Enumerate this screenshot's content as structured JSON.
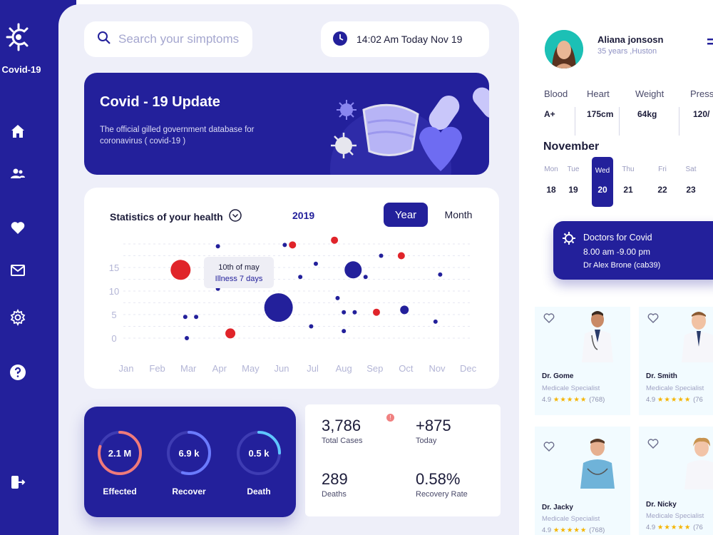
{
  "app": {
    "name": "Covid-19"
  },
  "sidebar": {
    "items": [
      {
        "icon": "home-icon"
      },
      {
        "icon": "users-icon"
      },
      {
        "icon": "heart-icon"
      },
      {
        "icon": "mail-icon"
      },
      {
        "icon": "gear-icon"
      },
      {
        "icon": "help-icon"
      },
      {
        "icon": "logout-icon"
      }
    ]
  },
  "search": {
    "placeholder": "Search your simptoms"
  },
  "clock": {
    "text": "14:02 Am Today Nov 19"
  },
  "banner": {
    "title": "Covid - 19 Update",
    "text": "The official gilled government database for coronavirus ( covid-19 )"
  },
  "stats": {
    "title": "Statistics of your health",
    "year": "2019",
    "toggle_year": "Year",
    "toggle_month": "Month",
    "tooltip_title": "10th of may",
    "tooltip_text": "Illness 7 days"
  },
  "chart_data": {
    "type": "scatter",
    "x_categories": [
      "Jan",
      "Feb",
      "Mar",
      "Apr",
      "May",
      "Jun",
      "Jul",
      "Aug",
      "Sep",
      "Oct",
      "Nov",
      "Dec"
    ],
    "y_ticks": [
      0,
      5,
      10,
      15
    ],
    "ylim": [
      0,
      20
    ],
    "grid": true,
    "series": [
      {
        "color": "#23209b",
        "points": [
          {
            "x": 2.25,
            "y": 4.5,
            "size": 3
          },
          {
            "x": 1.9,
            "y": 4.5,
            "size": 3
          },
          {
            "x": 1.95,
            "y": 0,
            "size": 3
          },
          {
            "x": 2.95,
            "y": 19.5,
            "size": 3
          },
          {
            "x": 2.95,
            "y": 10.5,
            "size": 3
          },
          {
            "x": 4.9,
            "y": 6.5,
            "size": 20
          },
          {
            "x": 5.1,
            "y": 19.8,
            "size": 3
          },
          {
            "x": 5.6,
            "y": 13,
            "size": 3
          },
          {
            "x": 5.95,
            "y": 2.5,
            "size": 3
          },
          {
            "x": 6.1,
            "y": 15.8,
            "size": 3
          },
          {
            "x": 6.8,
            "y": 8.5,
            "size": 3
          },
          {
            "x": 7.0,
            "y": 5.5,
            "size": 3
          },
          {
            "x": 7.0,
            "y": 1.5,
            "size": 3
          },
          {
            "x": 7.3,
            "y": 14.5,
            "size": 12
          },
          {
            "x": 7.35,
            "y": 5.5,
            "size": 3
          },
          {
            "x": 7.7,
            "y": 13,
            "size": 3
          },
          {
            "x": 8.2,
            "y": 17.5,
            "size": 3
          },
          {
            "x": 8.95,
            "y": 6,
            "size": 6
          },
          {
            "x": 9.95,
            "y": 3.5,
            "size": 3
          },
          {
            "x": 10.1,
            "y": 13.5,
            "size": 3
          }
        ]
      },
      {
        "color": "#e0242a",
        "points": [
          {
            "x": 1.75,
            "y": 14.5,
            "size": 14
          },
          {
            "x": 3.35,
            "y": 1,
            "size": 7
          },
          {
            "x": 5.35,
            "y": 19.8,
            "size": 5
          },
          {
            "x": 6.7,
            "y": 20.8,
            "size": 5
          },
          {
            "x": 8.05,
            "y": 5.5,
            "size": 5
          },
          {
            "x": 8.85,
            "y": 17.5,
            "size": 5
          }
        ]
      }
    ]
  },
  "summary": [
    {
      "value": "2.1 M",
      "label": "Effected",
      "color": "#f07a7a",
      "fraction": 0.8
    },
    {
      "value": "6.9 k",
      "label": "Recover",
      "color": "#6b7bff",
      "fraction": 0.55
    },
    {
      "value": "0.5 k",
      "label": "Death",
      "color": "#5fc6ff",
      "fraction": 0.25
    }
  ],
  "cards": [
    {
      "value": "3,786",
      "label": "Total Cases",
      "bg": "#fdeeee"
    },
    {
      "value": "+875",
      "label": "Today",
      "bg": "#e6f9e4"
    },
    {
      "value": "289",
      "label": "Deaths",
      "bg": "#def7f7"
    },
    {
      "value": "0.58%",
      "label": "Recovery Rate",
      "bg": "#ecebfb"
    }
  ],
  "user": {
    "name": "Aliana jonsosn",
    "sub": "35 years ,Huston"
  },
  "vitals": [
    {
      "key": "Blood",
      "value": "A+"
    },
    {
      "key": "Heart",
      "value": "175cm"
    },
    {
      "key": "Weight",
      "value": "64kg"
    },
    {
      "key": "Press",
      "value": "120/"
    }
  ],
  "calendar": {
    "month": "November",
    "days": [
      {
        "name": "Mon",
        "date": "18"
      },
      {
        "name": "Tue",
        "date": "19"
      },
      {
        "name": "Wed",
        "date": "20",
        "active": true
      },
      {
        "name": "Thu",
        "date": "21"
      },
      {
        "name": "Fri",
        "date": "22"
      },
      {
        "name": "Sat",
        "date": "23"
      }
    ]
  },
  "doctors_card": {
    "title": "Doctors for Covid",
    "time": "8.00 am -9.00 pm",
    "doctor": "Dr Alex Brone",
    "code": "(cab39)"
  },
  "doctors": [
    {
      "name": "Dr. Gome",
      "spec": "Medicale Specialist",
      "rating": "4.9",
      "reviews": "(768)"
    },
    {
      "name": "Dr. Smith",
      "spec": "Medicale Specialist",
      "rating": "4.9",
      "reviews": "(76"
    },
    {
      "name": "Dr. Jacky",
      "spec": "Medicale Specialist",
      "rating": "4.9",
      "reviews": "(768)"
    },
    {
      "name": "Dr. Nicky",
      "spec": "Medicale Specialist",
      "rating": "4.9",
      "reviews": "(76"
    }
  ]
}
